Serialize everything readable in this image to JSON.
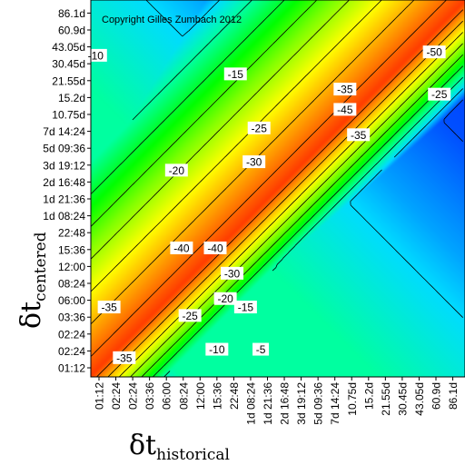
{
  "chart_data": {
    "type": "heatmap",
    "title": "",
    "copyright": "Copyright Gilles Zumbach 2012",
    "xlabel": {
      "symbol": "δt",
      "subscript": "historical"
    },
    "ylabel": {
      "symbol": "δt",
      "subscript": "centered"
    },
    "x_ticks": [
      "01:12",
      "02:24",
      "02:24",
      "03:36",
      "06:00",
      "08:24",
      "12:00",
      "15:36",
      "22:48",
      "1d 08:24",
      "1d 21:36",
      "2d 16:48",
      "3d 19:12",
      "5d 09:36",
      "7d 14:24",
      "10.75d",
      "15.2d",
      "21.55d",
      "30.45d",
      "43.05d",
      "60.9d",
      "86.1d"
    ],
    "y_ticks": [
      "01:12",
      "02:24",
      "02:24",
      "03:36",
      "06:00",
      "08:24",
      "12:00",
      "15:36",
      "22:48",
      "1d 08:24",
      "1d 21:36",
      "2d 16:48",
      "3d 19:12",
      "5d 09:36",
      "7d 14:24",
      "10.75d",
      "15.2d",
      "21.55d",
      "30.45d",
      "43.05d",
      "60.9d",
      "86.1d"
    ],
    "contour_levels": [
      -5,
      -10,
      -15,
      -20,
      -25,
      -30,
      -35,
      -40,
      -45,
      -50
    ],
    "color_scale": {
      "high": "#ff0000",
      "mid_high": "#ffff00",
      "mid": "#00ff00",
      "mid_low": "#00ffff",
      "low": "#0000ff"
    },
    "contour_labels": [
      {
        "text": "-10",
        "i": -0.2,
        "j": 18.5
      },
      {
        "text": "-15",
        "i": 8.1,
        "j": 17.4
      },
      {
        "text": "-20",
        "i": 4.6,
        "j": 11.7
      },
      {
        "text": "-25",
        "i": 9.5,
        "j": 14.2
      },
      {
        "text": "-30",
        "i": 9.2,
        "j": 12.2
      },
      {
        "text": "-35",
        "i": 14.6,
        "j": 16.5
      },
      {
        "text": "-45",
        "i": 14.6,
        "j": 15.3
      },
      {
        "text": "-35",
        "i": 15.4,
        "j": 13.8
      },
      {
        "text": "-25",
        "i": 20.2,
        "j": 16.2
      },
      {
        "text": "-50",
        "i": 19.9,
        "j": 18.7
      },
      {
        "text": "-40",
        "i": 4.9,
        "j": 7.1
      },
      {
        "text": "-40",
        "i": 6.9,
        "j": 7.1
      },
      {
        "text": "-30",
        "i": 7.9,
        "j": 5.6
      },
      {
        "text": "-20",
        "i": 7.5,
        "j": 4.1
      },
      {
        "text": "-15",
        "i": 8.7,
        "j": 3.6
      },
      {
        "text": "-25",
        "i": 5.4,
        "j": 3.1
      },
      {
        "text": "-35",
        "i": 0.6,
        "j": 3.6
      },
      {
        "text": "-35",
        "i": 1.5,
        "j": 0.6
      },
      {
        "text": "-10",
        "i": 7.0,
        "j": 1.1
      },
      {
        "text": "-5",
        "i": 9.6,
        "j": 1.1
      }
    ],
    "grid": false,
    "legend": "none"
  }
}
